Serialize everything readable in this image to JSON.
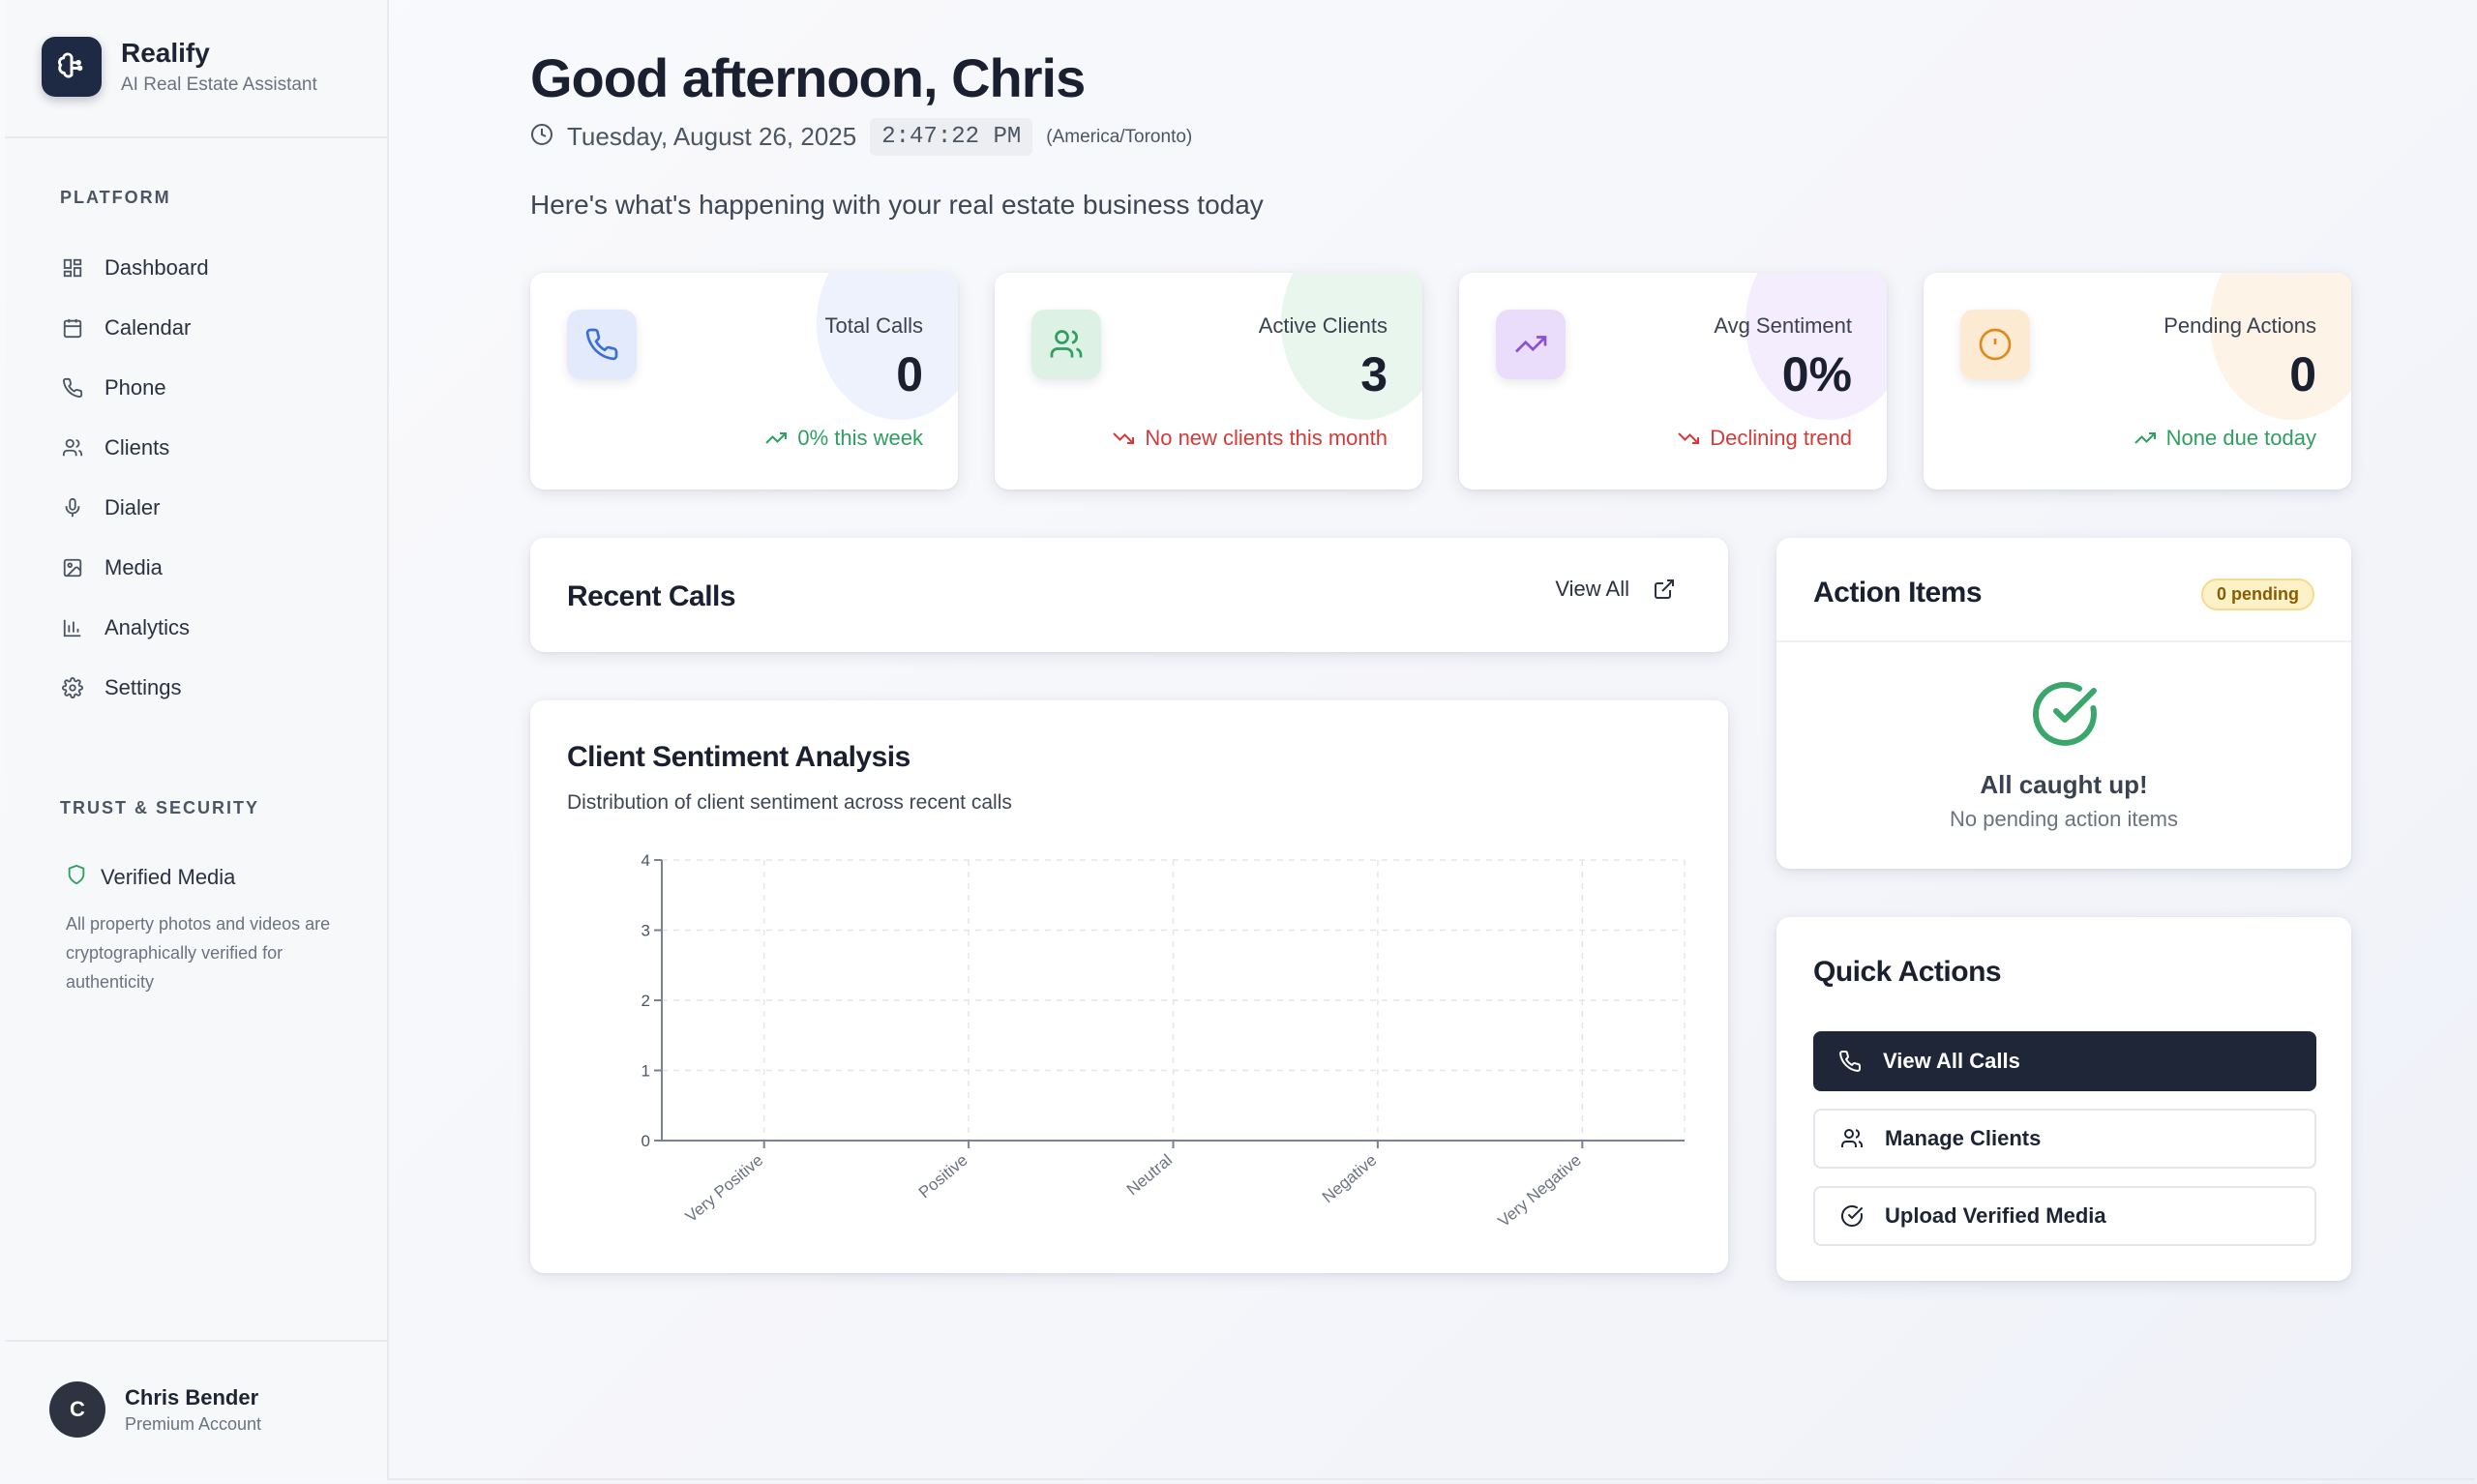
{
  "brand": {
    "name": "Realify",
    "subtitle": "AI Real Estate Assistant"
  },
  "sidebar": {
    "platform_label": "PLATFORM",
    "items": [
      {
        "label": "Dashboard",
        "icon": "dashboard-icon"
      },
      {
        "label": "Calendar",
        "icon": "calendar-icon"
      },
      {
        "label": "Phone",
        "icon": "phone-icon"
      },
      {
        "label": "Clients",
        "icon": "users-icon"
      },
      {
        "label": "Dialer",
        "icon": "microphone-icon"
      },
      {
        "label": "Media",
        "icon": "image-icon"
      },
      {
        "label": "Analytics",
        "icon": "bar-chart-icon"
      },
      {
        "label": "Settings",
        "icon": "gear-icon"
      }
    ],
    "trust_label": "TRUST & SECURITY",
    "trust_title": "Verified Media",
    "trust_desc": "All property photos and videos are cryptographically verified for authenticity"
  },
  "user": {
    "initial": "C",
    "name": "Chris Bender",
    "plan": "Premium Account"
  },
  "header": {
    "greeting": "Good afternoon, Chris",
    "date": "Tuesday, August 26, 2025",
    "time": "2:47:22 PM",
    "timezone": "(America/Toronto)",
    "intro": "Here's what's happening with your real estate business today"
  },
  "stats": [
    {
      "label": "Total Calls",
      "value": "0",
      "trend": "0% this week",
      "trend_dir": "up",
      "icon": "phone-icon",
      "color": "#3b6fd6"
    },
    {
      "label": "Active Clients",
      "value": "3",
      "trend": "No new clients this month",
      "trend_dir": "down",
      "icon": "users-icon",
      "color": "#2f9e61"
    },
    {
      "label": "Avg Sentiment",
      "value": "0%",
      "trend": "Declining trend",
      "trend_dir": "down",
      "icon": "trending-up-icon",
      "color": "#8b4fd8"
    },
    {
      "label": "Pending Actions",
      "value": "0",
      "trend": "None due today",
      "trend_dir": "up",
      "icon": "alert-circle-icon",
      "color": "#e08a1e"
    }
  ],
  "recent_calls": {
    "title": "Recent Calls",
    "view_all": "View All"
  },
  "sentiment": {
    "title": "Client Sentiment Analysis",
    "subtitle": "Distribution of client sentiment across recent calls"
  },
  "chart_data": {
    "type": "bar",
    "title": "Client Sentiment Analysis",
    "categories": [
      "Very Positive",
      "Positive",
      "Neutral",
      "Negative",
      "Very Negative"
    ],
    "values": [
      0,
      0,
      0,
      0,
      0
    ],
    "ylim": [
      0,
      4
    ],
    "yticks": [
      0,
      1,
      2,
      3,
      4
    ],
    "grid": true
  },
  "action_items": {
    "title": "Action Items",
    "badge": "0 pending",
    "empty_title": "All caught up!",
    "empty_sub": "No pending action items"
  },
  "quick_actions": {
    "title": "Quick Actions",
    "buttons": [
      {
        "label": "View All Calls",
        "icon": "phone-icon",
        "style": "primary"
      },
      {
        "label": "Manage Clients",
        "icon": "users-icon",
        "style": "secondary"
      },
      {
        "label": "Upload Verified Media",
        "icon": "check-circle-icon",
        "style": "secondary"
      }
    ]
  }
}
